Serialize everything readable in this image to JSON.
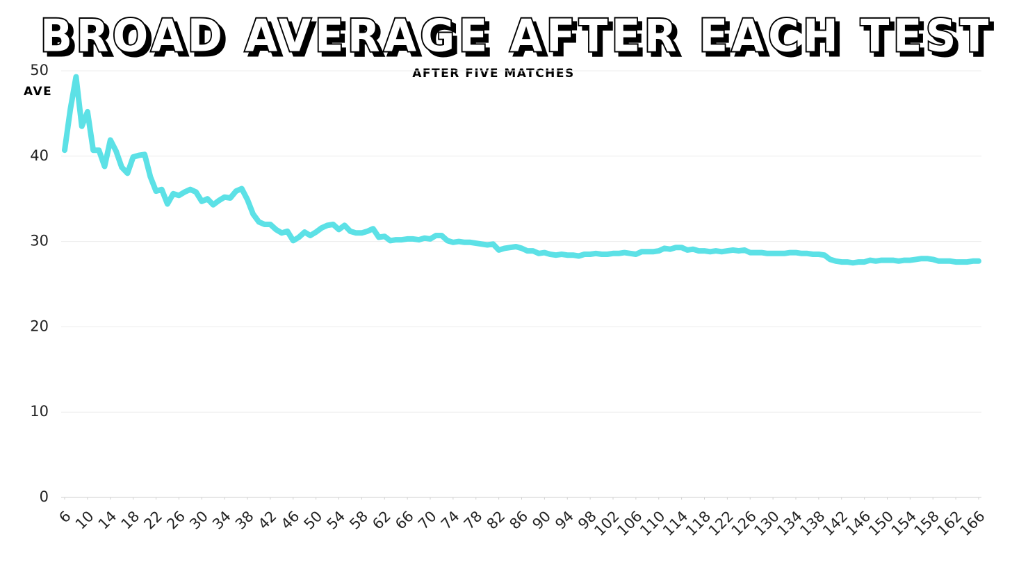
{
  "chart_data": {
    "type": "line",
    "title": "BROAD AVERAGE AFTER EACH TEST",
    "subtitle": "AFTER FIVE MATCHES",
    "y_label": "AVE",
    "xlim": [
      6,
      166
    ],
    "ylim": [
      0,
      50
    ],
    "yticks": [
      0,
      10,
      20,
      30,
      40,
      50
    ],
    "xticks": [
      6,
      10,
      14,
      18,
      22,
      26,
      30,
      34,
      38,
      42,
      46,
      50,
      54,
      58,
      62,
      66,
      70,
      74,
      78,
      82,
      86,
      90,
      94,
      98,
      102,
      106,
      110,
      114,
      118,
      122,
      126,
      130,
      134,
      138,
      142,
      146,
      150,
      154,
      158,
      162,
      166
    ],
    "grid": true,
    "series": [
      {
        "name": "Broad average",
        "color": "#5ce1e6",
        "x": [
          6,
          7,
          8,
          9,
          10,
          11,
          12,
          13,
          14,
          15,
          16,
          17,
          18,
          19,
          20,
          21,
          22,
          23,
          24,
          25,
          26,
          27,
          28,
          29,
          30,
          31,
          32,
          33,
          34,
          35,
          36,
          37,
          38,
          39,
          40,
          41,
          42,
          43,
          44,
          45,
          46,
          47,
          48,
          49,
          50,
          51,
          52,
          53,
          54,
          55,
          56,
          57,
          58,
          59,
          60,
          61,
          62,
          63,
          64,
          65,
          66,
          67,
          68,
          69,
          70,
          71,
          72,
          73,
          74,
          75,
          76,
          77,
          78,
          79,
          80,
          81,
          82,
          83,
          84,
          85,
          86,
          87,
          88,
          89,
          90,
          91,
          92,
          93,
          94,
          95,
          96,
          97,
          98,
          99,
          100,
          101,
          102,
          103,
          104,
          105,
          106,
          107,
          108,
          109,
          110,
          111,
          112,
          113,
          114,
          115,
          116,
          117,
          118,
          119,
          120,
          121,
          122,
          123,
          124,
          125,
          126,
          127,
          128,
          129,
          130,
          131,
          132,
          133,
          134,
          135,
          136,
          137,
          138,
          139,
          140,
          141,
          142,
          143,
          144,
          145,
          146,
          147,
          148,
          149,
          150,
          151,
          152,
          153,
          154,
          155,
          156,
          157,
          158,
          159,
          160,
          161,
          162,
          163,
          164,
          165,
          166
        ],
        "values": [
          40.7,
          45.5,
          49.3,
          43.5,
          45.2,
          40.7,
          40.7,
          38.8,
          41.9,
          40.6,
          38.7,
          38.0,
          39.9,
          40.1,
          40.2,
          37.6,
          35.9,
          36.1,
          34.4,
          35.6,
          35.4,
          35.8,
          36.1,
          35.8,
          34.7,
          35.0,
          34.3,
          34.8,
          35.2,
          35.1,
          35.9,
          36.2,
          34.9,
          33.2,
          32.3,
          32.0,
          32.0,
          31.4,
          31.0,
          31.2,
          30.1,
          30.5,
          31.1,
          30.7,
          31.1,
          31.6,
          31.9,
          32.0,
          31.4,
          31.9,
          31.2,
          31.0,
          31.0,
          31.2,
          31.5,
          30.5,
          30.6,
          30.1,
          30.2,
          30.2,
          30.3,
          30.3,
          30.2,
          30.4,
          30.3,
          30.7,
          30.7,
          30.1,
          29.9,
          30.0,
          29.9,
          29.9,
          29.8,
          29.7,
          29.6,
          29.7,
          29.0,
          29.2,
          29.3,
          29.4,
          29.2,
          28.9,
          28.9,
          28.6,
          28.7,
          28.5,
          28.4,
          28.5,
          28.4,
          28.4,
          28.3,
          28.5,
          28.5,
          28.6,
          28.5,
          28.5,
          28.6,
          28.6,
          28.7,
          28.6,
          28.5,
          28.8,
          28.8,
          28.8,
          28.9,
          29.2,
          29.1,
          29.3,
          29.3,
          29.0,
          29.1,
          28.9,
          28.9,
          28.8,
          28.9,
          28.8,
          28.9,
          29.0,
          28.9,
          29.0,
          28.7,
          28.7,
          28.7,
          28.6,
          28.6,
          28.6,
          28.6,
          28.7,
          28.7,
          28.6,
          28.6,
          28.5,
          28.5,
          28.4,
          27.9,
          27.7,
          27.6,
          27.6,
          27.5,
          27.6,
          27.6,
          27.8,
          27.7,
          27.8,
          27.8,
          27.8,
          27.7,
          27.8,
          27.8,
          27.9,
          28.0,
          28.0,
          27.9,
          27.7,
          27.7,
          27.7,
          27.6,
          27.6,
          27.6,
          27.7,
          27.7
        ]
      }
    ]
  }
}
